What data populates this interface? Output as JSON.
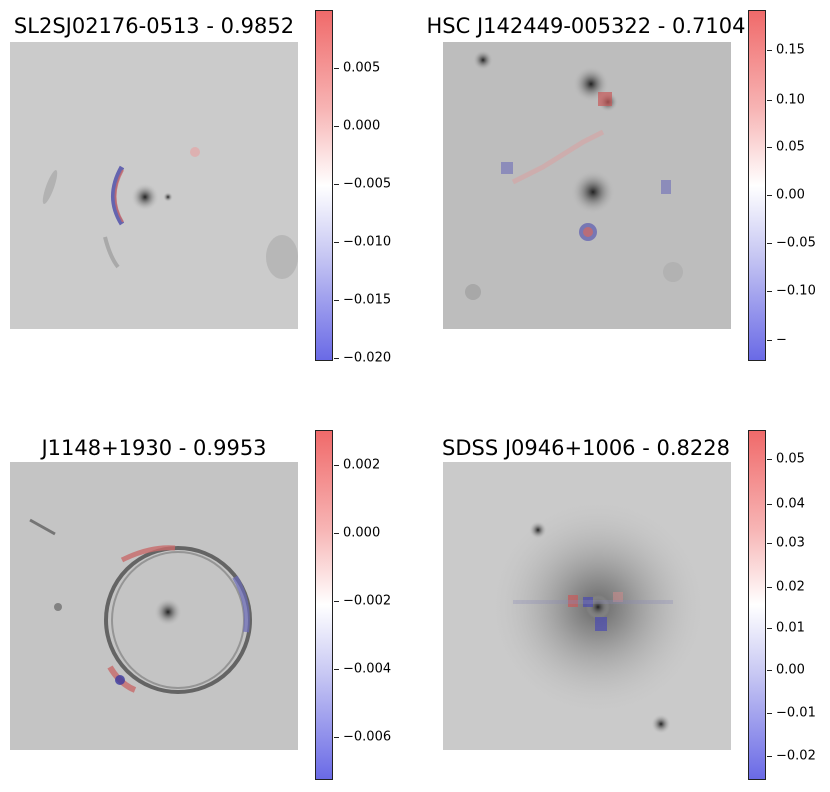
{
  "panels": [
    {
      "title": "SL2SJ02176-0513 - 0.9852",
      "colorbar_ticks": [
        "0.005",
        "0.000",
        "−0.005",
        "−0.010",
        "−0.015",
        "−0.020"
      ]
    },
    {
      "title": "HSC J142449-005322 - 0.7104",
      "colorbar_ticks": [
        "0.15",
        "0.10",
        "0.05",
        "0.00",
        "−0.05",
        "−0.10",
        "−"
      ]
    },
    {
      "title": "J1148+1930 - 0.9953",
      "colorbar_ticks": [
        "0.002",
        "0.000",
        "−0.002",
        "−0.004",
        "−0.006"
      ]
    },
    {
      "title": "SDSS J0946+1006 - 0.8228",
      "colorbar_ticks": [
        "0.05",
        "0.04",
        "0.03",
        "0.02",
        "0.01",
        "0.00",
        "−0.01",
        "−0.02"
      ]
    }
  ],
  "colormap": {
    "positive": "#f06a6a",
    "zero": "#ffffff",
    "negative": "#6a6ae6"
  }
}
